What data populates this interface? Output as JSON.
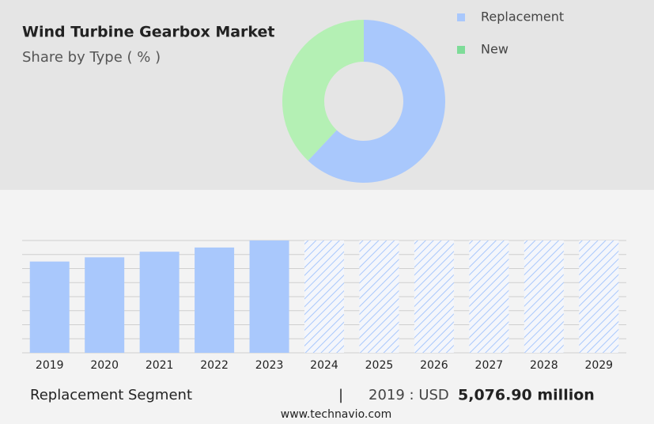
{
  "header": {
    "title": "Wind Turbine Gearbox Market",
    "subtitle": "Share by Type ( % )"
  },
  "chart_data": [
    {
      "type": "pie",
      "donut": true,
      "categories": [
        "Replacement",
        "New"
      ],
      "values": [
        62,
        38
      ],
      "colors": [
        "#a9c8fc",
        "#b4f0b4"
      ],
      "legend_colors": [
        "#a9c8fc",
        "#7edc98"
      ],
      "legend": "top-right"
    },
    {
      "type": "bar",
      "categories": [
        "2019",
        "2020",
        "2021",
        "2022",
        "2023",
        "2024",
        "2025",
        "2026",
        "2027",
        "2028",
        "2029"
      ],
      "values": [
        6.5,
        6.8,
        7.2,
        7.5,
        8,
        null,
        null,
        null,
        null,
        null,
        null
      ],
      "color": "#a9c8fc",
      "ylim": [
        0,
        8
      ],
      "yticks": [
        0,
        1,
        2,
        3,
        4,
        5,
        6,
        7,
        8
      ],
      "grid": true
    }
  ],
  "footer": {
    "segment": "Replacement Segment",
    "separator": "|",
    "year_label": "2019 : USD",
    "value": "5,076.90 million",
    "source": "www.technavio.com"
  }
}
